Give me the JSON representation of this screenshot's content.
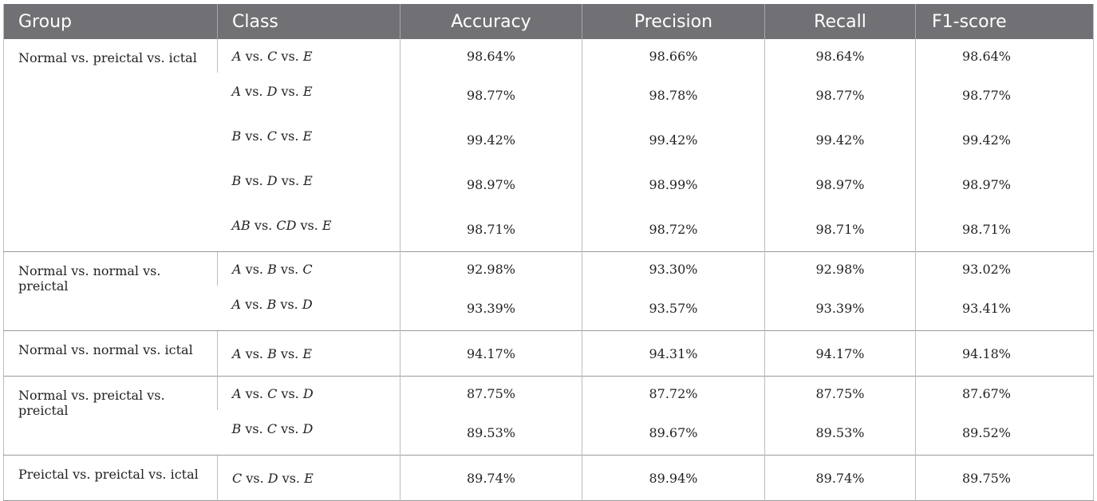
{
  "table": {
    "headers": [
      "Group",
      "Class",
      "Accuracy",
      "Precision",
      "Recall",
      "F1-score"
    ],
    "groups": [
      {
        "name": "Normal vs. preictal vs. ictal",
        "rows": [
          {
            "cls": [
              [
                "A",
                " vs. "
              ],
              [
                "C",
                " vs. "
              ],
              [
                "E",
                ""
              ]
            ],
            "acc": "98.64%",
            "prec": "98.66%",
            "rec": "98.64%",
            "f1": "98.64%"
          },
          {
            "cls": [
              [
                "A",
                " vs. "
              ],
              [
                "D",
                " vs. "
              ],
              [
                "E",
                ""
              ]
            ],
            "acc": "98.77%",
            "prec": "98.78%",
            "rec": "98.77%",
            "f1": "98.77%"
          },
          {
            "cls": [
              [
                "B",
                " vs. "
              ],
              [
                "C",
                " vs. "
              ],
              [
                "E",
                ""
              ]
            ],
            "acc": "99.42%",
            "prec": "99.42%",
            "rec": "99.42%",
            "f1": "99.42%"
          },
          {
            "cls": [
              [
                "B",
                " vs. "
              ],
              [
                "D",
                " vs. "
              ],
              [
                "E",
                ""
              ]
            ],
            "acc": "98.97%",
            "prec": "98.99%",
            "rec": "98.97%",
            "f1": "98.97%"
          },
          {
            "cls": [
              [
                "AB",
                " vs. "
              ],
              [
                "CD",
                " vs. "
              ],
              [
                "E",
                ""
              ]
            ],
            "acc": "98.71%",
            "prec": "98.72%",
            "rec": "98.71%",
            "f1": "98.71%"
          }
        ]
      },
      {
        "name": "Normal vs. normal vs. preictal",
        "rows": [
          {
            "cls": [
              [
                "A",
                " vs. "
              ],
              [
                "B",
                " vs. "
              ],
              [
                "C",
                ""
              ]
            ],
            "acc": "92.98%",
            "prec": "93.30%",
            "rec": "92.98%",
            "f1": "93.02%"
          },
          {
            "cls": [
              [
                "A",
                " vs. "
              ],
              [
                "B",
                " vs. "
              ],
              [
                "D",
                ""
              ]
            ],
            "acc": "93.39%",
            "prec": "93.57%",
            "rec": "93.39%",
            "f1": "93.41%"
          }
        ]
      },
      {
        "name": "Normal vs. normal vs. ictal",
        "rows": [
          {
            "cls": [
              [
                "A",
                " vs. "
              ],
              [
                "B",
                " vs. "
              ],
              [
                "E",
                ""
              ]
            ],
            "acc": "94.17%",
            "prec": "94.31%",
            "rec": "94.17%",
            "f1": "94.18%"
          }
        ]
      },
      {
        "name": "Normal vs. preictal vs. preictal",
        "rows": [
          {
            "cls": [
              [
                "A",
                " vs. "
              ],
              [
                "C",
                " vs. "
              ],
              [
                "D",
                ""
              ]
            ],
            "acc": "87.75%",
            "prec": "87.72%",
            "rec": "87.75%",
            "f1": "87.67%"
          },
          {
            "cls": [
              [
                "B",
                " vs. "
              ],
              [
                "C",
                " vs. "
              ],
              [
                "D",
                ""
              ]
            ],
            "acc": "89.53%",
            "prec": "89.67%",
            "rec": "89.53%",
            "f1": "89.52%"
          }
        ]
      },
      {
        "name": "Preictal vs. preictal vs. ictal",
        "rows": [
          {
            "cls": [
              [
                "C",
                " vs. "
              ],
              [
                "D",
                " vs. "
              ],
              [
                "E",
                ""
              ]
            ],
            "acc": "89.74%",
            "prec": "89.94%",
            "rec": "89.74%",
            "f1": "89.75%"
          }
        ]
      }
    ]
  }
}
